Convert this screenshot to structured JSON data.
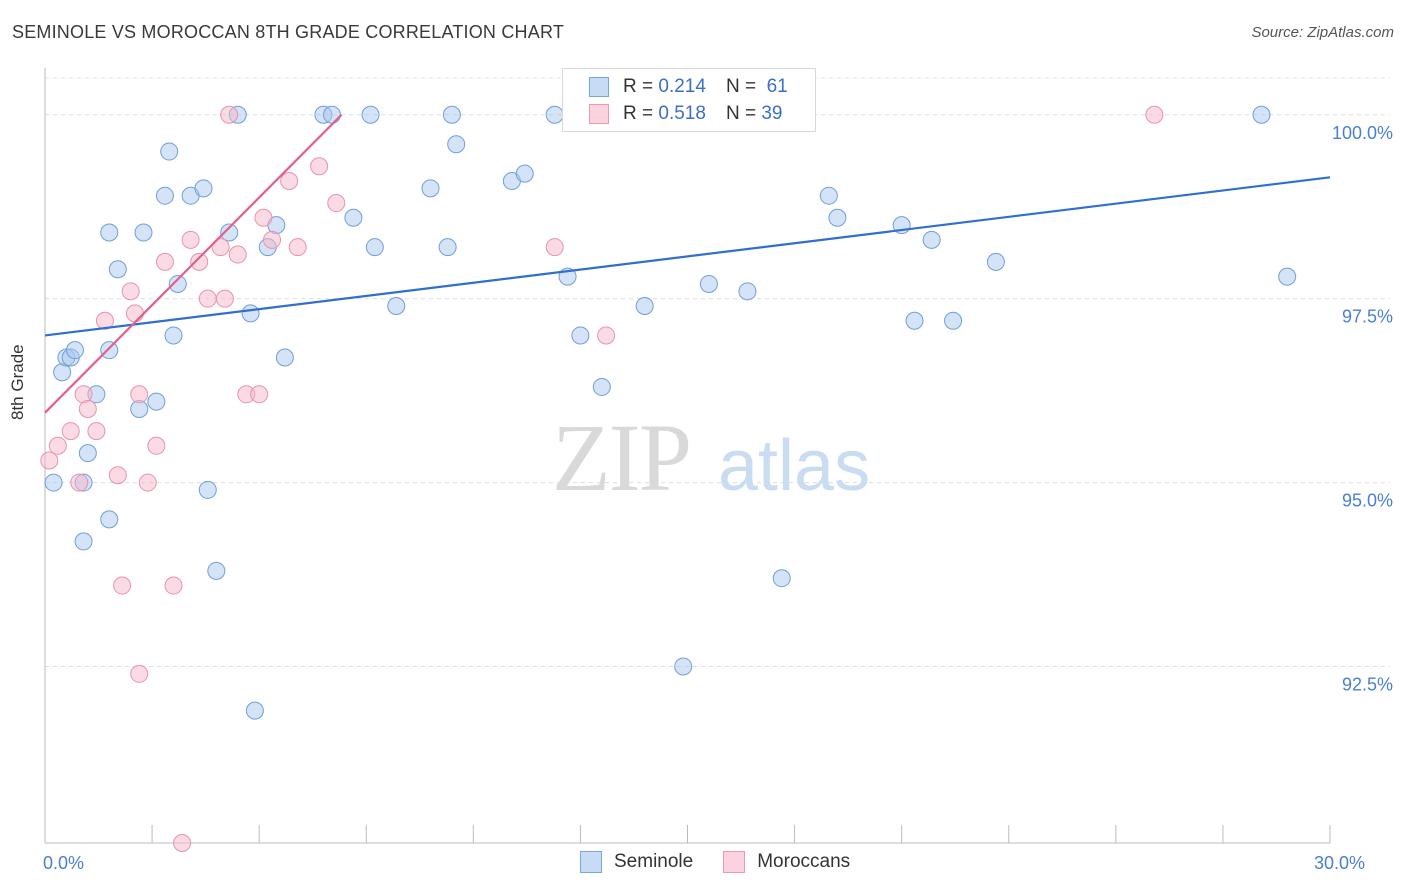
{
  "header": {
    "title": "SEMINOLE VS MOROCCAN 8TH GRADE CORRELATION CHART",
    "source": "Source: ZipAtlas.com"
  },
  "watermark": {
    "zip": "ZIP",
    "atlas": "atlas"
  },
  "legend_top": {
    "rows": [
      {
        "r_label": "R =",
        "r_value": "0.214",
        "n_label": "N =",
        "n_value": "61",
        "color": "#a9c7ee"
      },
      {
        "r_label": "R =",
        "r_value": "0.518",
        "n_label": "N =",
        "n_value": "39",
        "color": "#f5b8c9"
      }
    ]
  },
  "legend_bottom": {
    "items": [
      {
        "label": "Seminole",
        "color": "#a9c7ee"
      },
      {
        "label": "Moroccans",
        "color": "#f5b8c9"
      }
    ]
  },
  "chart_data": {
    "type": "scatter",
    "title": "SEMINOLE VS MOROCCAN 8TH GRADE CORRELATION CHART",
    "xlabel": "",
    "ylabel": "8th Grade",
    "xlim": [
      0,
      30
    ],
    "ylim": [
      90.1,
      100.5
    ],
    "x_tick_labels": [
      {
        "value": 0,
        "label": "0.0%"
      },
      {
        "value": 30,
        "label": "30.0%"
      }
    ],
    "y_tick_labels": [
      {
        "value": 100,
        "label": "100.0%"
      },
      {
        "value": 97.5,
        "label": "97.5%"
      },
      {
        "value": 95,
        "label": "95.0%"
      },
      {
        "value": 92.5,
        "label": "92.5%"
      }
    ],
    "grid": true,
    "legend_position": "top-center",
    "series": [
      {
        "name": "Seminole",
        "color": "#a9c7ee",
        "stroke": "#6f9fd9",
        "trend_color": "#2f6fcd",
        "trend": {
          "x0": 0,
          "y0": 97.0,
          "x1": 30,
          "y1": 99.15
        },
        "points": [
          [
            0.2,
            95.0
          ],
          [
            0.4,
            96.5
          ],
          [
            0.5,
            96.7
          ],
          [
            0.6,
            96.7
          ],
          [
            0.7,
            96.8
          ],
          [
            0.9,
            95.0
          ],
          [
            0.9,
            94.2
          ],
          [
            1.0,
            95.4
          ],
          [
            1.2,
            96.2
          ],
          [
            1.5,
            96.8
          ],
          [
            1.5,
            94.5
          ],
          [
            1.5,
            98.4
          ],
          [
            1.7,
            97.9
          ],
          [
            2.2,
            96.0
          ],
          [
            2.3,
            98.4
          ],
          [
            2.6,
            96.1
          ],
          [
            2.8,
            98.9
          ],
          [
            2.9,
            99.5
          ],
          [
            3.0,
            97.0
          ],
          [
            3.1,
            97.7
          ],
          [
            3.4,
            98.9
          ],
          [
            3.7,
            99.0
          ],
          [
            3.8,
            94.9
          ],
          [
            4.0,
            93.8
          ],
          [
            4.3,
            98.4
          ],
          [
            4.5,
            100.0
          ],
          [
            4.8,
            97.3
          ],
          [
            5.2,
            98.2
          ],
          [
            5.4,
            98.5
          ],
          [
            5.6,
            96.7
          ],
          [
            6.5,
            100.0
          ],
          [
            6.7,
            100.0
          ],
          [
            7.2,
            98.6
          ],
          [
            7.6,
            100.0
          ],
          [
            7.7,
            98.2
          ],
          [
            8.2,
            97.4
          ],
          [
            9.0,
            99.0
          ],
          [
            9.4,
            98.2
          ],
          [
            9.5,
            100.0
          ],
          [
            9.6,
            99.6
          ],
          [
            10.9,
            99.1
          ],
          [
            11.2,
            99.2
          ],
          [
            11.9,
            100.0
          ],
          [
            12.2,
            97.8
          ],
          [
            12.5,
            97.0
          ],
          [
            13.0,
            96.3
          ],
          [
            14.0,
            97.4
          ],
          [
            14.9,
            92.5
          ],
          [
            15.5,
            97.7
          ],
          [
            16.4,
            97.6
          ],
          [
            17.2,
            93.7
          ],
          [
            18.3,
            98.9
          ],
          [
            18.5,
            98.6
          ],
          [
            20.0,
            98.5
          ],
          [
            20.3,
            97.2
          ],
          [
            20.7,
            98.3
          ],
          [
            21.2,
            97.2
          ],
          [
            22.2,
            98.0
          ],
          [
            28.4,
            100.0
          ],
          [
            29.0,
            97.8
          ],
          [
            4.9,
            91.9
          ]
        ]
      },
      {
        "name": "Moroccans",
        "color": "#f5b8c9",
        "stroke": "#e893ac",
        "trend_color": "#e0608a",
        "trend": {
          "x0": 0,
          "y0": 95.95,
          "x1": 30,
          "y1": 113.5
        },
        "points": [
          [
            0.1,
            95.3
          ],
          [
            0.3,
            95.5
          ],
          [
            0.6,
            95.7
          ],
          [
            0.8,
            95.0
          ],
          [
            0.9,
            96.2
          ],
          [
            1.0,
            96.0
          ],
          [
            1.2,
            95.7
          ],
          [
            1.4,
            97.2
          ],
          [
            1.7,
            95.1
          ],
          [
            1.8,
            93.6
          ],
          [
            2.0,
            97.6
          ],
          [
            2.1,
            97.3
          ],
          [
            2.2,
            96.2
          ],
          [
            2.2,
            92.4
          ],
          [
            2.4,
            95.0
          ],
          [
            2.6,
            95.5
          ],
          [
            2.8,
            98.0
          ],
          [
            3.0,
            93.6
          ],
          [
            3.2,
            90.1
          ],
          [
            3.4,
            98.3
          ],
          [
            3.6,
            98.0
          ],
          [
            3.8,
            97.5
          ],
          [
            4.1,
            98.2
          ],
          [
            4.2,
            97.5
          ],
          [
            4.3,
            100.0
          ],
          [
            4.5,
            98.1
          ],
          [
            4.7,
            96.2
          ],
          [
            5.0,
            96.2
          ],
          [
            5.1,
            98.6
          ],
          [
            5.3,
            98.3
          ],
          [
            5.7,
            99.1
          ],
          [
            5.9,
            98.2
          ],
          [
            6.4,
            99.3
          ],
          [
            6.8,
            98.8
          ],
          [
            11.9,
            98.2
          ],
          [
            12.7,
            100.0
          ],
          [
            13.1,
            97.0
          ],
          [
            16.2,
            100.0
          ],
          [
            25.9,
            100.0
          ]
        ]
      }
    ]
  }
}
